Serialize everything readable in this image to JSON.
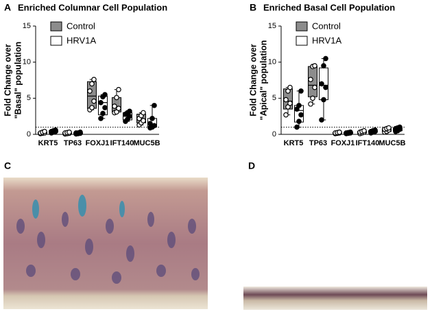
{
  "chart_data": [
    {
      "type": "box",
      "panel_label": "A",
      "title": "Enriched Columnar Cell Population",
      "ylabel": [
        "Fold Change over",
        "\"Basal\" population"
      ],
      "categories": [
        "KRT5",
        "TP63",
        "FOXJ1",
        "IFT140",
        "MUC5B"
      ],
      "ylim": [
        0,
        15
      ],
      "yticks": [
        0,
        5,
        10,
        15
      ],
      "reference_line": 1,
      "legend": "upper-left",
      "series": [
        {
          "name": "Control",
          "color": "#8c8c8c",
          "point_style": "open",
          "boxes": [
            {
              "min": 0.1,
              "q1": 0.15,
              "median": 0.2,
              "q3": 0.3,
              "max": 0.4
            },
            {
              "min": 0.05,
              "q1": 0.1,
              "median": 0.15,
              "q3": 0.25,
              "max": 0.3
            },
            {
              "min": 3.4,
              "q1": 3.6,
              "median": 5.3,
              "q3": 7.3,
              "max": 7.6
            },
            {
              "min": 3.0,
              "q1": 3.1,
              "median": 3.7,
              "q3": 5.1,
              "max": 6.2
            },
            {
              "min": 1.3,
              "q1": 1.6,
              "median": 2.0,
              "q3": 2.8,
              "max": 3.0
            }
          ],
          "points": [
            [
              0.1,
              0.15,
              0.2,
              0.2,
              0.3,
              0.4
            ],
            [
              0.05,
              0.1,
              0.15,
              0.2,
              0.25,
              0.3
            ],
            [
              3.4,
              3.7,
              4.6,
              6.0,
              7.0,
              7.6
            ],
            [
              3.0,
              3.1,
              3.6,
              3.9,
              5.1,
              6.2
            ],
            [
              1.3,
              1.6,
              1.9,
              2.2,
              2.6,
              3.0
            ]
          ]
        },
        {
          "name": "HRV1A",
          "color": "#ffffff",
          "point_style": "filled",
          "boxes": [
            {
              "min": 0.2,
              "q1": 0.3,
              "median": 0.4,
              "q3": 0.5,
              "max": 0.6
            },
            {
              "min": 0.05,
              "q1": 0.1,
              "median": 0.15,
              "q3": 0.2,
              "max": 0.3
            },
            {
              "min": 2.2,
              "q1": 2.7,
              "median": 4.4,
              "q3": 5.3,
              "max": 5.5
            },
            {
              "min": 1.8,
              "q1": 2.0,
              "median": 2.5,
              "q3": 3.0,
              "max": 3.2
            },
            {
              "min": 0.9,
              "q1": 1.0,
              "median": 1.4,
              "q3": 2.2,
              "max": 4.0
            }
          ],
          "points": [
            [
              0.2,
              0.3,
              0.4,
              0.4,
              0.5,
              0.6
            ],
            [
              0.05,
              0.1,
              0.15,
              0.2,
              0.2,
              0.3
            ],
            [
              2.2,
              2.9,
              3.7,
              4.4,
              5.2,
              5.5
            ],
            [
              1.8,
              2.1,
              2.5,
              2.8,
              3.0,
              3.2
            ],
            [
              0.9,
              1.0,
              1.2,
              1.5,
              2.2,
              4.0
            ]
          ]
        }
      ]
    },
    {
      "type": "box",
      "panel_label": "B",
      "title": "Enriched Basal Cell Population",
      "ylabel": [
        "Fold Change over",
        "\"Apical\" population"
      ],
      "categories": [
        "KRT5",
        "TP63",
        "FOXJ1",
        "IFT140",
        "MUC5B"
      ],
      "ylim": [
        0,
        15
      ],
      "yticks": [
        0,
        5,
        10,
        15
      ],
      "reference_line": 1,
      "legend": "upper-left",
      "series": [
        {
          "name": "Control",
          "color": "#8c8c8c",
          "point_style": "open",
          "boxes": [
            {
              "min": 2.7,
              "q1": 3.5,
              "median": 4.6,
              "q3": 6.3,
              "max": 6.5
            },
            {
              "min": 4.2,
              "q1": 5.2,
              "median": 6.8,
              "q3": 9.4,
              "max": 9.5
            },
            {
              "min": 0.1,
              "q1": 0.15,
              "median": 0.2,
              "q3": 0.25,
              "max": 0.3
            },
            {
              "min": 0.1,
              "q1": 0.2,
              "median": 0.3,
              "q3": 0.4,
              "max": 0.5
            },
            {
              "min": 0.3,
              "q1": 0.4,
              "median": 0.6,
              "q3": 0.8,
              "max": 0.9
            }
          ],
          "points": [
            [
              2.7,
              3.8,
              4.3,
              4.8,
              6.0,
              6.5
            ],
            [
              4.2,
              5.0,
              6.5,
              7.6,
              9.4,
              9.5
            ],
            [
              0.1,
              0.15,
              0.2,
              0.2,
              0.25,
              0.3
            ],
            [
              0.1,
              0.2,
              0.3,
              0.3,
              0.4,
              0.5
            ],
            [
              0.3,
              0.4,
              0.6,
              0.7,
              0.8,
              0.9
            ]
          ]
        },
        {
          "name": "HRV1A",
          "color": "#ffffff",
          "point_style": "filled",
          "boxes": [
            {
              "min": 1.0,
              "q1": 1.7,
              "median": 3.3,
              "q3": 4.0,
              "max": 6.0
            },
            {
              "min": 2.0,
              "q1": 4.8,
              "median": 6.8,
              "q3": 9.2,
              "max": 10.5
            },
            {
              "min": 0.1,
              "q1": 0.15,
              "median": 0.2,
              "q3": 0.25,
              "max": 0.3
            },
            {
              "min": 0.2,
              "q1": 0.3,
              "median": 0.4,
              "q3": 0.5,
              "max": 0.6
            },
            {
              "min": 0.4,
              "q1": 0.5,
              "median": 0.7,
              "q3": 0.9,
              "max": 1.0
            }
          ],
          "points": [
            [
              1.0,
              1.8,
              2.7,
              3.5,
              4.0,
              6.0
            ],
            [
              2.0,
              4.8,
              6.5,
              7.0,
              9.5,
              10.5
            ],
            [
              0.1,
              0.15,
              0.2,
              0.2,
              0.25,
              0.3
            ],
            [
              0.2,
              0.3,
              0.4,
              0.4,
              0.5,
              0.6
            ],
            [
              0.4,
              0.5,
              0.7,
              0.8,
              0.9,
              1.0
            ]
          ]
        }
      ]
    }
  ],
  "images": [
    {
      "panel_label": "C"
    },
    {
      "panel_label": "D"
    }
  ]
}
